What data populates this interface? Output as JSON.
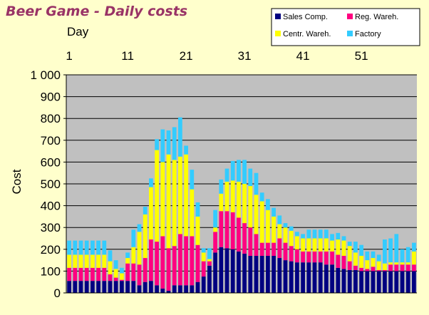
{
  "chart_data": {
    "type": "bar",
    "stacked": true,
    "title": "Beer Game - Daily costs",
    "xlabel": "Day",
    "ylabel": "Cost",
    "x_tick_labels": [
      "1",
      "11",
      "21",
      "31",
      "41",
      "51"
    ],
    "y_tick_labels": [
      "0",
      "100",
      "200",
      "300",
      "400",
      "500",
      "600",
      "700",
      "800",
      "900",
      "1 000"
    ],
    "ylim": [
      0,
      1000
    ],
    "x": [
      1,
      2,
      3,
      4,
      5,
      6,
      7,
      8,
      9,
      10,
      11,
      12,
      13,
      14,
      15,
      16,
      17,
      18,
      19,
      20,
      21,
      22,
      23,
      24,
      25,
      26,
      27,
      28,
      29,
      30,
      31,
      32,
      33,
      34,
      35,
      36,
      37,
      38,
      39,
      40,
      41,
      42,
      43,
      44,
      45,
      46,
      47,
      48,
      49,
      50,
      51,
      52,
      53,
      54,
      55,
      56,
      57,
      58,
      59,
      60
    ],
    "plot_background": "#c0c0c0",
    "gridlines": true,
    "legend_position": "top-right",
    "series": [
      {
        "name": "Sales Comp.",
        "color": "#000080",
        "values": [
          55,
          55,
          55,
          55,
          55,
          55,
          55,
          55,
          55,
          55,
          55,
          55,
          35,
          50,
          55,
          35,
          20,
          10,
          35,
          35,
          35,
          35,
          50,
          75,
          125,
          185,
          210,
          205,
          200,
          190,
          180,
          170,
          170,
          170,
          170,
          170,
          160,
          150,
          145,
          140,
          140,
          140,
          140,
          140,
          130,
          130,
          115,
          110,
          105,
          105,
          100,
          100,
          100,
          100,
          100,
          100,
          100,
          100,
          100,
          100
        ]
      },
      {
        "name": "Reg. Wareh.",
        "color": "#ff0080",
        "values": [
          60,
          60,
          60,
          60,
          60,
          60,
          60,
          30,
          15,
          5,
          80,
          80,
          95,
          110,
          190,
          200,
          240,
          195,
          180,
          235,
          225,
          225,
          170,
          70,
          20,
          95,
          165,
          170,
          170,
          155,
          140,
          130,
          100,
          60,
          60,
          60,
          90,
          80,
          70,
          60,
          50,
          50,
          50,
          50,
          60,
          60,
          60,
          60,
          40,
          20,
          15,
          10,
          20,
          5,
          5,
          30,
          30,
          30,
          30,
          30
        ]
      },
      {
        "name": "Centr. Wareh.",
        "color": "#ffff00",
        "values": [
          60,
          60,
          60,
          60,
          60,
          60,
          60,
          60,
          40,
          30,
          25,
          75,
          150,
          200,
          240,
          420,
          340,
          430,
          395,
          355,
          375,
          215,
          130,
          40,
          10,
          20,
          80,
          135,
          145,
          165,
          180,
          190,
          180,
          190,
          150,
          120,
          65,
          70,
          70,
          60,
          60,
          60,
          60,
          60,
          60,
          50,
          70,
          70,
          70,
          60,
          55,
          40,
          40,
          40,
          30,
          10,
          10,
          10,
          10,
          60
        ]
      },
      {
        "name": "Factory",
        "color": "#33ccff",
        "values": [
          65,
          65,
          65,
          65,
          65,
          65,
          65,
          50,
          40,
          25,
          25,
          80,
          35,
          35,
          40,
          50,
          150,
          110,
          150,
          180,
          40,
          90,
          65,
          20,
          50,
          80,
          65,
          60,
          90,
          100,
          110,
          80,
          100,
          40,
          50,
          40,
          40,
          20,
          20,
          20,
          20,
          40,
          40,
          40,
          40,
          30,
          30,
          20,
          20,
          50,
          50,
          40,
          30,
          30,
          110,
          110,
          130,
          60,
          70,
          40
        ]
      }
    ]
  }
}
